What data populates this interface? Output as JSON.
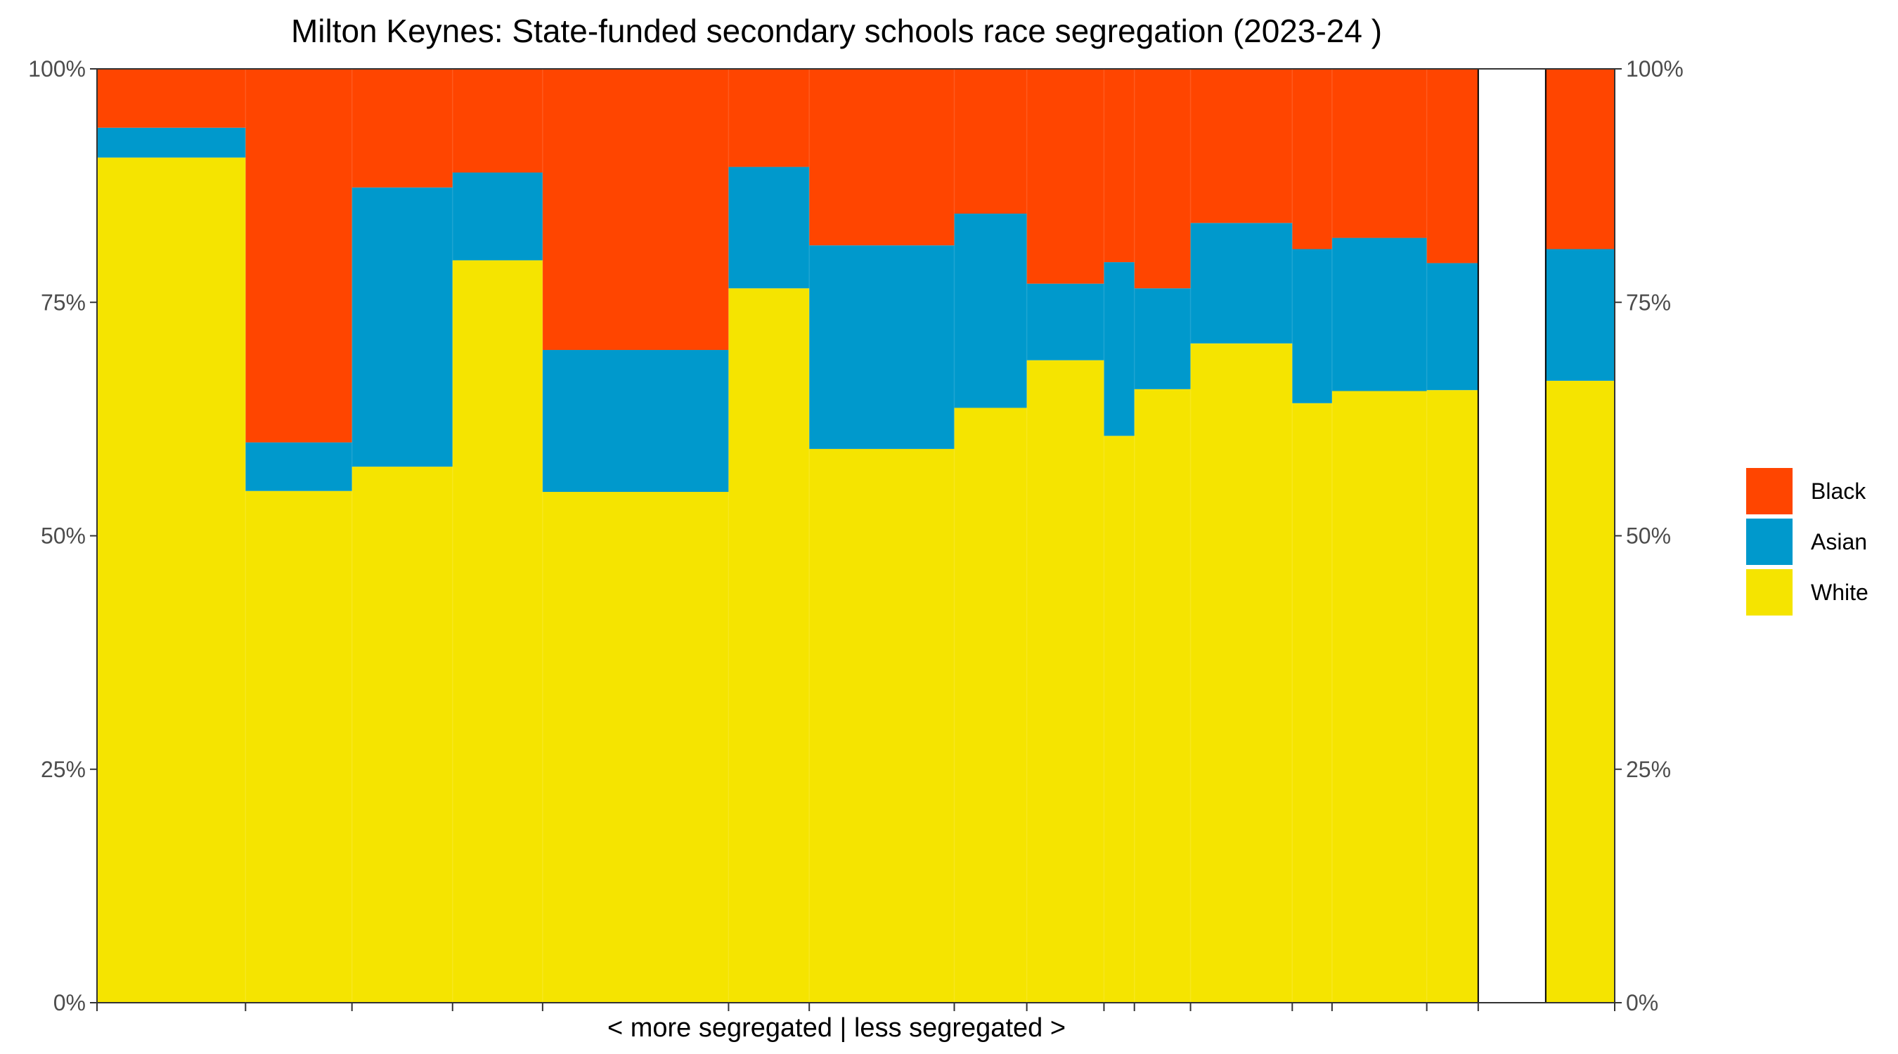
{
  "chart_data": {
    "type": "bar",
    "subtype": "stacked-marimekko",
    "title": "Milton Keynes: State-funded secondary schools race segregation (2023-24 )",
    "xlabel": "< more segregated | less segregated >",
    "ylabel": "",
    "ylim": [
      0,
      100
    ],
    "yticks": [
      "0%",
      "25%",
      "50%",
      "75%",
      "100%"
    ],
    "secondary_y_axis": true,
    "grid": false,
    "legend_position": "right",
    "colors": {
      "Black": "#FF4500",
      "Asian": "#0099CC",
      "White": "#F5E400"
    },
    "stack_order": [
      "White",
      "Asian",
      "Black"
    ],
    "legend_order": [
      "Black",
      "Asian",
      "White"
    ],
    "series": [
      {
        "name": "White",
        "values": [
          90.5,
          54.8,
          57.4,
          79.5,
          54.7,
          76.5,
          59.3,
          63.7,
          68.8,
          60.7,
          65.7,
          70.6,
          64.2,
          65.5,
          65.6,
          66.6
        ]
      },
      {
        "name": "Asian",
        "values": [
          3.2,
          5.2,
          29.9,
          9.4,
          15.2,
          13.0,
          21.8,
          20.8,
          8.2,
          18.6,
          10.8,
          12.9,
          16.5,
          16.4,
          13.6,
          14.1
        ]
      },
      {
        "name": "Black",
        "values": [
          6.3,
          40.0,
          12.7,
          11.1,
          30.1,
          10.5,
          18.9,
          15.5,
          23.0,
          20.7,
          23.5,
          16.5,
          19.3,
          18.1,
          20.8,
          19.3
        ]
      }
    ],
    "widths": [
      12.7,
      9.1,
      8.6,
      7.7,
      15.9,
      6.9,
      12.4,
      6.2,
      6.6,
      2.6,
      4.8,
      8.7,
      3.4,
      8.1,
      4.4,
      5.9
    ],
    "summary_bar_index": 15
  }
}
